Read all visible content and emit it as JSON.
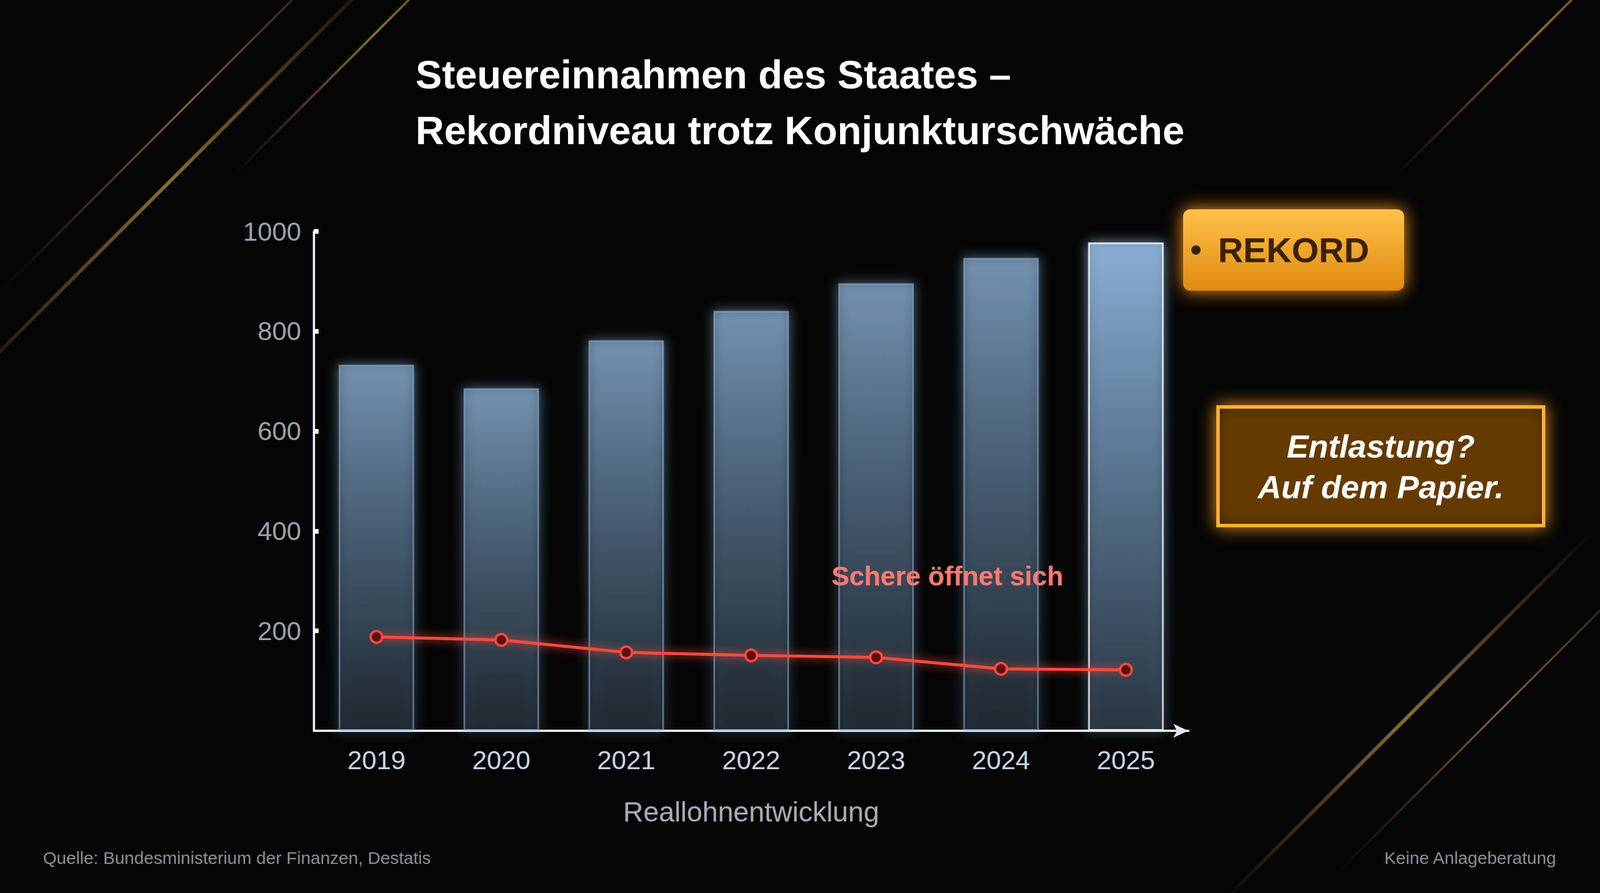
{
  "chart_data": {
    "type": "bar",
    "title": "Steuereinnahmen des Staates – Rekordniveau trotz Konjunkturschwäche",
    "x_label": "Reallohnentwicklung",
    "categories": [
      "2019",
      "2020",
      "2021",
      "2022",
      "2023",
      "2024",
      "2025"
    ],
    "series": [
      {
        "type": "bar",
        "color": "#8fb6dc",
        "values": [
          733,
          686,
          782,
          841,
          896,
          947,
          978
        ]
      },
      {
        "type": "line",
        "color": "#ff4a3d",
        "marker": "circle",
        "values": [
          188,
          182,
          157,
          151,
          147,
          124,
          122
        ]
      }
    ],
    "ylim": [
      0,
      1000
    ],
    "yticks": [
      200,
      400,
      600,
      800,
      1000
    ],
    "grid": false,
    "annotations": {
      "record": "REKORD",
      "callout": "Entlastung? Auf dem Papier.",
      "gap": "Schere öffnet sich"
    },
    "source": "Quelle: Bundesministerium der Finanzen, Destatis",
    "disclaimer": "Keine Anlageberatung"
  }
}
